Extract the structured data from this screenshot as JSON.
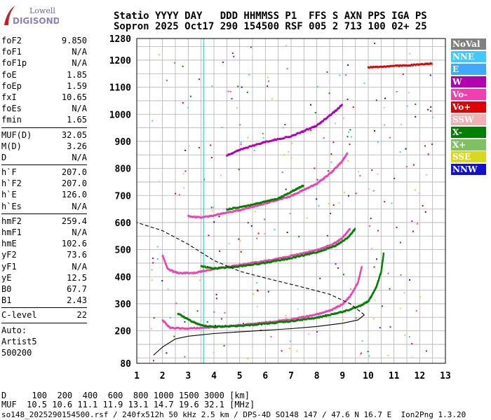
{
  "logo": {
    "line1": "Lowell",
    "line2": "DIGISONDE"
  },
  "header": {
    "line1": "Statio YYYY DAY   DDD HHMMSS P1  FFS S AXN PPS IGA PS",
    "line2": "Sopron 2025 Oct17 290 154500 RSF 005 2 713 100 02+ 25"
  },
  "params": {
    "group1": [
      {
        "label": "foF2",
        "value": "9.850"
      },
      {
        "label": "foF1",
        "value": "N/A"
      },
      {
        "label": "foF1p",
        "value": "N/A"
      },
      {
        "label": "foE",
        "value": "1.85"
      },
      {
        "label": "foEp",
        "value": "1.59"
      },
      {
        "label": "fxI",
        "value": "10.65"
      },
      {
        "label": "foEs",
        "value": "N/A"
      },
      {
        "label": "fmin",
        "value": "1.65"
      }
    ],
    "group2": [
      {
        "label": "MUF(D)",
        "value": "32.05"
      },
      {
        "label": "M(D)",
        "value": "3.26"
      },
      {
        "label": "D",
        "value": "N/A"
      }
    ],
    "group3": [
      {
        "label": "h`F",
        "value": "207.0"
      },
      {
        "label": "h`F2",
        "value": "207.0"
      },
      {
        "label": "h`E",
        "value": "126.0"
      },
      {
        "label": "h`Es",
        "value": "N/A"
      }
    ],
    "group4": [
      {
        "label": "hmF2",
        "value": "259.4"
      },
      {
        "label": "hmF1",
        "value": "N/A"
      },
      {
        "label": "hmE",
        "value": "102.6"
      },
      {
        "label": "yF2",
        "value": "73.6"
      },
      {
        "label": "yF1",
        "value": "N/A"
      },
      {
        "label": "yE",
        "value": "12.5"
      },
      {
        "label": "B0",
        "value": "67.7"
      },
      {
        "label": "B1",
        "value": "2.43"
      }
    ],
    "group5": [
      {
        "label": "C-level",
        "value": "22"
      }
    ],
    "auto": {
      "label": "Auto:",
      "artist": "Artist5",
      "code": "500200"
    }
  },
  "legend": [
    {
      "label": "NoVal",
      "color": "#808080"
    },
    {
      "label": "NNE",
      "color": "#40c8ff"
    },
    {
      "label": "E",
      "color": "#40a8ff"
    },
    {
      "label": "W",
      "color": "#b000b0"
    },
    {
      "label": "Vo-",
      "color": "#f040b0"
    },
    {
      "label": "Vo+",
      "color": "#e00000"
    },
    {
      "label": "SSW",
      "color": "#f4b0b0"
    },
    {
      "label": "X-",
      "color": "#008000"
    },
    {
      "label": "X+",
      "color": "#80c060"
    },
    {
      "label": "SSE",
      "color": "#d8d820"
    },
    {
      "label": "NNW",
      "color": "#1010d0"
    }
  ],
  "chart_data": {
    "type": "scatter",
    "xlim": [
      1,
      13
    ],
    "ylim": [
      80,
      1280
    ],
    "xticks": [
      "1",
      "2",
      "3",
      "4",
      "5",
      "6",
      "7",
      "8",
      "9",
      "10",
      "11",
      "12",
      "13"
    ],
    "yticks": [
      "80",
      "200",
      "300",
      "400",
      "500",
      "600",
      "700",
      "800",
      "900",
      "1000",
      "1100",
      "1200",
      "1280"
    ],
    "grid": true,
    "legend_position": "right",
    "series": [
      {
        "mode": "O-trace",
        "color": "#f040b0",
        "points": [
          [
            2.0,
            240
          ],
          [
            2.3,
            212
          ],
          [
            3.0,
            210
          ],
          [
            4.0,
            215
          ],
          [
            5.0,
            222
          ],
          [
            6.0,
            232
          ],
          [
            7.0,
            244
          ],
          [
            8.0,
            262
          ],
          [
            8.6,
            280
          ],
          [
            9.0,
            300
          ],
          [
            9.3,
            330
          ],
          [
            9.6,
            380
          ],
          [
            9.75,
            440
          ]
        ]
      },
      {
        "mode": "X-trace",
        "color": "#008000",
        "points": [
          [
            2.6,
            265
          ],
          [
            3.1,
            238
          ],
          [
            3.5,
            222
          ],
          [
            4.0,
            217
          ],
          [
            5.0,
            220
          ],
          [
            6.0,
            228
          ],
          [
            7.0,
            237
          ],
          [
            8.0,
            250
          ],
          [
            9.0,
            272
          ],
          [
            9.6,
            290
          ],
          [
            10.0,
            310
          ],
          [
            10.3,
            360
          ],
          [
            10.5,
            420
          ],
          [
            10.6,
            490
          ]
        ]
      },
      {
        "mode": "O-trace-2hop",
        "color": "#f040b0",
        "points": [
          [
            2.0,
            480
          ],
          [
            2.2,
            430
          ],
          [
            2.6,
            415
          ],
          [
            3.2,
            415
          ],
          [
            4.0,
            430
          ],
          [
            5.0,
            445
          ],
          [
            6.0,
            460
          ],
          [
            7.0,
            478
          ],
          [
            8.0,
            500
          ],
          [
            8.6,
            520
          ],
          [
            9.0,
            545
          ],
          [
            9.3,
            580
          ]
        ]
      },
      {
        "mode": "X-trace-2hop",
        "color": "#008000",
        "points": [
          [
            3.5,
            440
          ],
          [
            4.0,
            432
          ],
          [
            5.0,
            440
          ],
          [
            6.0,
            453
          ],
          [
            7.0,
            470
          ],
          [
            8.0,
            492
          ],
          [
            8.7,
            515
          ],
          [
            9.2,
            545
          ],
          [
            9.5,
            580
          ]
        ]
      },
      {
        "mode": "O-trace-3hop",
        "color": "#f040b0",
        "points": [
          [
            3.0,
            625
          ],
          [
            3.5,
            620
          ],
          [
            4.0,
            628
          ],
          [
            5.0,
            648
          ],
          [
            6.0,
            672
          ],
          [
            7.0,
            700
          ],
          [
            8.0,
            745
          ],
          [
            8.6,
            790
          ],
          [
            9.0,
            830
          ],
          [
            9.2,
            860
          ]
        ]
      },
      {
        "mode": "X-trace-3hop",
        "color": "#008000",
        "points": [
          [
            4.5,
            650
          ],
          [
            5.5,
            668
          ],
          [
            6.5,
            690
          ],
          [
            7.0,
            715
          ],
          [
            7.5,
            740
          ]
        ]
      },
      {
        "mode": "W-4hop",
        "color": "#b000b0",
        "points": [
          [
            4.5,
            850
          ],
          [
            5.0,
            870
          ],
          [
            6.0,
            900
          ],
          [
            7.0,
            920
          ],
          [
            8.0,
            960
          ],
          [
            8.8,
            1020
          ],
          [
            9.0,
            1040
          ]
        ]
      },
      {
        "mode": "Es-high",
        "color": "#e00000",
        "points": [
          [
            10.0,
            1175
          ],
          [
            11.0,
            1180
          ],
          [
            12.0,
            1185
          ],
          [
            12.5,
            1190
          ]
        ]
      }
    ],
    "profile_lines": [
      {
        "name": "electron-density-profile",
        "style": "solid",
        "points": [
          [
            1.65,
            110
          ],
          [
            2.0,
            140
          ],
          [
            2.5,
            170
          ],
          [
            3.0,
            180
          ],
          [
            4.0,
            190
          ],
          [
            5.0,
            196
          ],
          [
            6.0,
            202
          ],
          [
            7.0,
            208
          ],
          [
            8.0,
            216
          ],
          [
            9.0,
            228
          ],
          [
            9.6,
            240
          ],
          [
            9.85,
            259
          ]
        ]
      },
      {
        "name": "topside-profile",
        "style": "dashed",
        "points": [
          [
            9.85,
            259
          ],
          [
            9.3,
            300
          ],
          [
            8.5,
            335
          ],
          [
            7.5,
            360
          ],
          [
            6.0,
            395
          ],
          [
            5.0,
            420
          ],
          [
            4.0,
            460
          ],
          [
            3.0,
            520
          ],
          [
            2.0,
            570
          ],
          [
            1.0,
            600
          ]
        ]
      }
    ]
  },
  "bottom": {
    "dist_line": "D     100  200  400  600  800 1000 1500 3000 [km]",
    "muf_line": "MUF  10.5 10.6 11.1 11.9 13.1 14.7 19.6 32.1 [MHz]",
    "footer": "so148_2025290154500.rsf / 240fx512h 50 kHz 2.5 km / DPS-4D SO148 147 / 47.6 N 16.7 E  Ion2Png 1.3.20"
  }
}
